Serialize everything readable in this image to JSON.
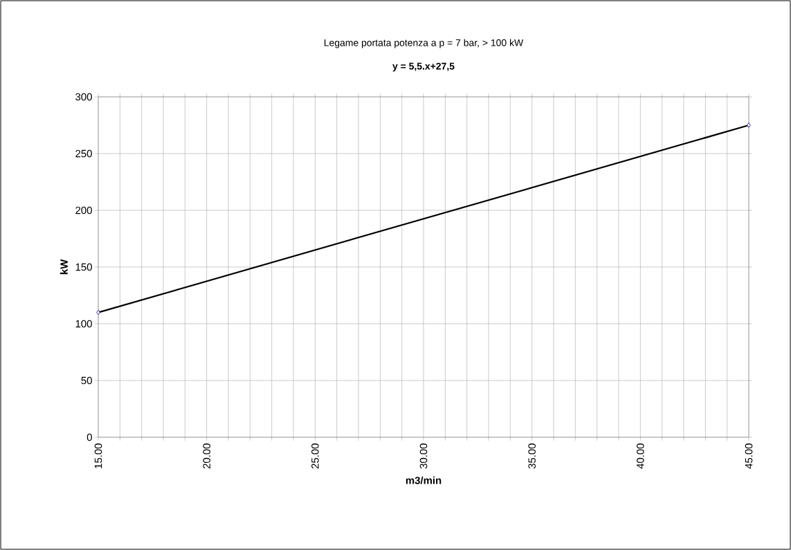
{
  "chart_data": {
    "type": "line",
    "title": "Legame portata potenza a p = 7 bar, > 100 kW",
    "subtitle": "y = 5,5.x+27,5",
    "xlabel": "m3/min",
    "ylabel": "kW",
    "x": [
      15,
      45
    ],
    "series": [
      {
        "color": "#000000",
        "values": [
          110,
          275
        ]
      }
    ],
    "xlim": [
      15,
      45
    ],
    "xticks": [
      {
        "value": 15,
        "label": "15.00"
      },
      {
        "value": 16,
        "label": null
      },
      {
        "value": 17,
        "label": null
      },
      {
        "value": 18,
        "label": null
      },
      {
        "value": 19,
        "label": null
      },
      {
        "value": 20,
        "label": "20.00"
      },
      {
        "value": 21,
        "label": null
      },
      {
        "value": 22,
        "label": null
      },
      {
        "value": 23,
        "label": null
      },
      {
        "value": 24,
        "label": null
      },
      {
        "value": 25,
        "label": "25.00"
      },
      {
        "value": 26,
        "label": null
      },
      {
        "value": 27,
        "label": null
      },
      {
        "value": 28,
        "label": null
      },
      {
        "value": 29,
        "label": null
      },
      {
        "value": 30,
        "label": "30.00"
      },
      {
        "value": 31,
        "label": null
      },
      {
        "value": 32,
        "label": null
      },
      {
        "value": 33,
        "label": null
      },
      {
        "value": 34,
        "label": null
      },
      {
        "value": 35,
        "label": "35.00"
      },
      {
        "value": 36,
        "label": null
      },
      {
        "value": 37,
        "label": null
      },
      {
        "value": 38,
        "label": null
      },
      {
        "value": 39,
        "label": null
      },
      {
        "value": 40,
        "label": "40.00"
      },
      {
        "value": 41,
        "label": null
      },
      {
        "value": 42,
        "label": null
      },
      {
        "value": 43,
        "label": null
      },
      {
        "value": 44,
        "label": null
      },
      {
        "value": 45,
        "label": "45.00"
      }
    ],
    "ylim": [
      0,
      300
    ],
    "yticks": [
      0,
      50,
      100,
      150,
      200,
      250,
      300
    ],
    "grid": true,
    "marker": "diamond",
    "line_style": "solid"
  }
}
